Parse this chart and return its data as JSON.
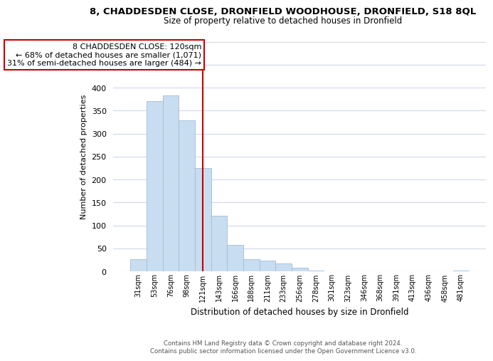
{
  "title": "8, CHADDESDEN CLOSE, DRONFIELD WOODHOUSE, DRONFIELD, S18 8QL",
  "subtitle": "Size of property relative to detached houses in Dronfield",
  "xlabel": "Distribution of detached houses by size in Dronfield",
  "ylabel": "Number of detached properties",
  "bar_labels": [
    "31sqm",
    "53sqm",
    "76sqm",
    "98sqm",
    "121sqm",
    "143sqm",
    "166sqm",
    "188sqm",
    "211sqm",
    "233sqm",
    "256sqm",
    "278sqm",
    "301sqm",
    "323sqm",
    "346sqm",
    "368sqm",
    "391sqm",
    "413sqm",
    "436sqm",
    "458sqm",
    "481sqm"
  ],
  "bar_values": [
    27,
    370,
    383,
    328,
    225,
    121,
    58,
    27,
    23,
    17,
    7,
    2,
    0,
    0,
    0,
    0,
    0,
    0,
    0,
    0,
    2
  ],
  "bar_color": "#c9ddf0",
  "bar_edge_color": "#a0bcd8",
  "vline_index": 4,
  "vline_color": "#cc0000",
  "ylim": [
    0,
    500
  ],
  "yticks": [
    0,
    50,
    100,
    150,
    200,
    250,
    300,
    350,
    400,
    450,
    500
  ],
  "annotation_title": "8 CHADDESDEN CLOSE: 120sqm",
  "annotation_line1": "← 68% of detached houses are smaller (1,071)",
  "annotation_line2": "31% of semi-detached houses are larger (484) →",
  "annotation_box_color": "#ffffff",
  "annotation_box_edge": "#cc0000",
  "footer_line1": "Contains HM Land Registry data © Crown copyright and database right 2024.",
  "footer_line2": "Contains public sector information licensed under the Open Government Licence v3.0.",
  "background_color": "#ffffff",
  "grid_color": "#d0d8e8",
  "title_fontsize": 9.5,
  "subtitle_fontsize": 8.5,
  "ylabel_fontsize": 8,
  "xlabel_fontsize": 8.5,
  "annotation_fontsize": 8,
  "footer_fontsize": 6.2
}
